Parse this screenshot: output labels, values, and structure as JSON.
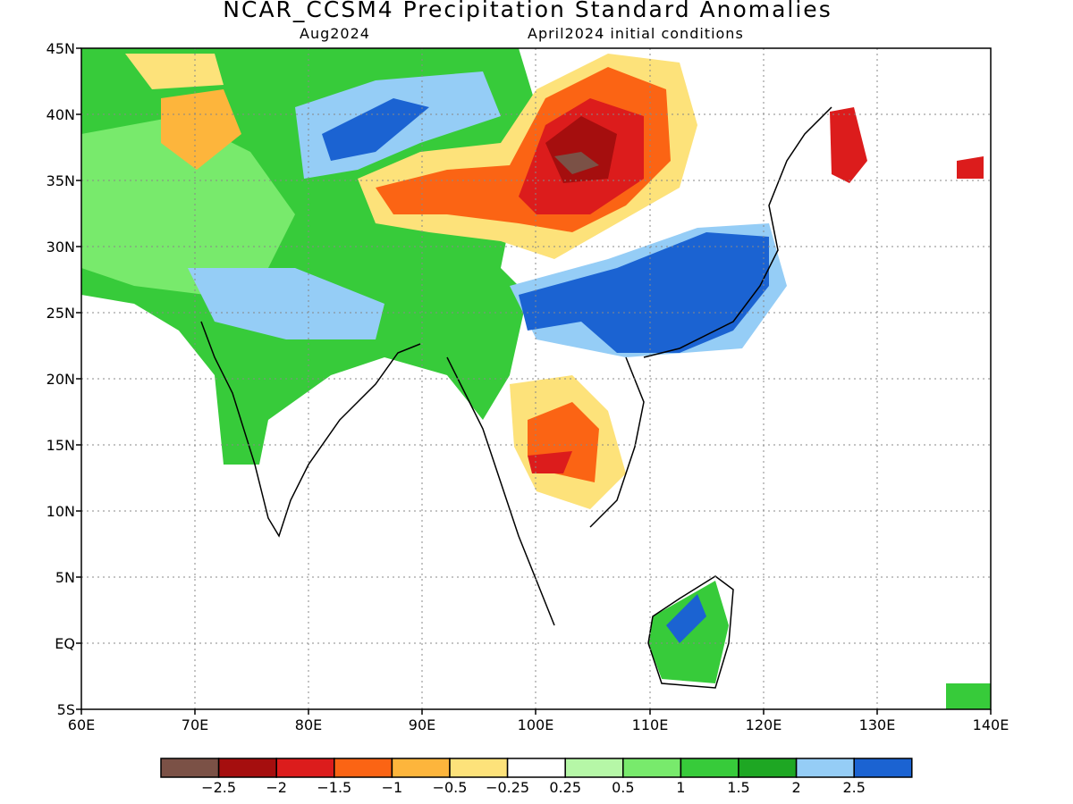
{
  "title": "NCAR_CCSM4 Precipitation Standard Anomalies",
  "subtitle_left": "Aug2024",
  "subtitle_right": "April2024 initial conditions",
  "map": {
    "lon_range": [
      60,
      140
    ],
    "lat_range": [
      -5,
      45
    ],
    "lon_ticks": [
      "60E",
      "70E",
      "80E",
      "90E",
      "100E",
      "110E",
      "120E",
      "130E",
      "140E"
    ],
    "lat_ticks": [
      "45N",
      "40N",
      "35N",
      "30N",
      "25N",
      "20N",
      "15N",
      "10N",
      "5N",
      "EQ",
      "5S"
    ],
    "grid": "dotted"
  },
  "colorbar": {
    "colors": [
      "#7b5146",
      "#a50e0e",
      "#dc1c1c",
      "#fb6414",
      "#fdb53c",
      "#fde27a",
      "#ffffff",
      "#b6f7a7",
      "#78ea6c",
      "#37cb3a",
      "#1ea723",
      "#95cdf6",
      "#1b63d2"
    ],
    "labels": [
      "−2.5",
      "−2",
      "−1.5",
      "−1",
      "−0.5",
      "−0.25",
      "0.25",
      "0.5",
      "1",
      "1.5",
      "2",
      "2.5"
    ]
  }
}
